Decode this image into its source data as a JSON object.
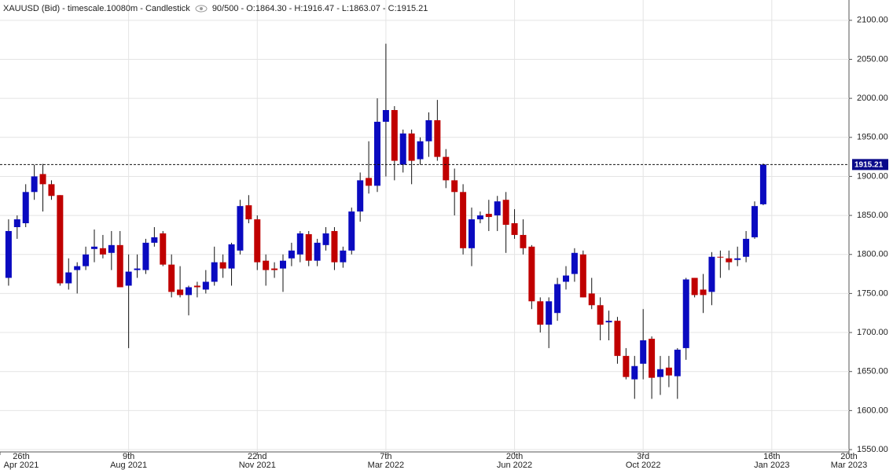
{
  "header": {
    "title": "XAUUSD (Bid) - timescale.10080m - Candlestick",
    "stats": "90/500 - O:1864.30 - H:1916.47 - L:1863.07 - C:1915.21"
  },
  "chart_data": {
    "type": "candlestick",
    "up_color": "#0a0ac0",
    "down_color": "#c00000",
    "open": [
      1770,
      1835,
      1840,
      1880,
      1903,
      1890,
      1876,
      1763,
      1780,
      1785,
      1807,
      1808,
      1802,
      1812,
      1760,
      1780,
      1780,
      1815,
      1827,
      1787,
      1755,
      1748,
      1760,
      1755,
      1765,
      1790,
      1782,
      1805,
      1863,
      1845,
      1792,
      1782,
      1782,
      1795,
      1800,
      1826,
      1792,
      1812,
      1830,
      1790,
      1805,
      1855,
      1898,
      1888,
      1970,
      1985,
      1915,
      1955,
      1922,
      1945,
      1972,
      1925,
      1895,
      1880,
      1808,
      1845,
      1852,
      1850,
      1870,
      1840,
      1825,
      1810,
      1740,
      1710,
      1725,
      1765,
      1775,
      1800,
      1750,
      1735,
      1713,
      1715,
      1670,
      1640,
      1660,
      1692,
      1643,
      1655,
      1644,
      1680,
      1770,
      1755,
      1752,
      1797,
      1795,
      1793,
      1797,
      1822,
      1864.3
    ],
    "high": [
      1845,
      1850,
      1890,
      1915,
      1916,
      1895,
      1876,
      1795,
      1790,
      1810,
      1832,
      1825,
      1830,
      1830,
      1800,
      1800,
      1820,
      1835,
      1830,
      1800,
      1785,
      1760,
      1765,
      1780,
      1810,
      1800,
      1815,
      1870,
      1876,
      1850,
      1800,
      1790,
      1800,
      1815,
      1830,
      1830,
      1820,
      1835,
      1835,
      1810,
      1860,
      1905,
      1945,
      2000,
      2070,
      1990,
      1960,
      1960,
      1950,
      1982,
      1998,
      1935,
      1910,
      1890,
      1860,
      1855,
      1870,
      1875,
      1880,
      1858,
      1845,
      1812,
      1745,
      1745,
      1770,
      1785,
      1808,
      1805,
      1770,
      1745,
      1728,
      1720,
      1680,
      1670,
      1730,
      1695,
      1670,
      1670,
      1680,
      1770,
      1770,
      1775,
      1803,
      1805,
      1805,
      1810,
      1830,
      1868,
      1916.47
    ],
    "low": [
      1760,
      1820,
      1835,
      1870,
      1855,
      1870,
      1760,
      1755,
      1750,
      1780,
      1790,
      1795,
      1780,
      1758,
      1680,
      1770,
      1775,
      1810,
      1785,
      1745,
      1745,
      1722,
      1745,
      1750,
      1760,
      1770,
      1760,
      1800,
      1840,
      1780,
      1760,
      1770,
      1752,
      1785,
      1790,
      1785,
      1785,
      1805,
      1780,
      1783,
      1800,
      1842,
      1878,
      1880,
      1900,
      1895,
      1905,
      1890,
      1915,
      1925,
      1920,
      1885,
      1850,
      1800,
      1785,
      1840,
      1830,
      1830,
      1802,
      1820,
      1800,
      1730,
      1700,
      1680,
      1715,
      1755,
      1765,
      1745,
      1730,
      1690,
      1690,
      1660,
      1640,
      1615,
      1640,
      1615,
      1620,
      1630,
      1615,
      1665,
      1745,
      1725,
      1735,
      1770,
      1780,
      1785,
      1790,
      1820,
      1863.07
    ],
    "close": [
      1830,
      1845,
      1880,
      1900,
      1890,
      1875,
      1763,
      1777,
      1785,
      1800,
      1810,
      1800,
      1812,
      1758,
      1778,
      1782,
      1815,
      1822,
      1787,
      1752,
      1748,
      1758,
      1758,
      1765,
      1790,
      1782,
      1813,
      1862,
      1845,
      1790,
      1780,
      1780,
      1792,
      1805,
      1827,
      1792,
      1815,
      1827,
      1790,
      1805,
      1855,
      1895,
      1888,
      1970,
      1985,
      1920,
      1955,
      1920,
      1945,
      1972,
      1925,
      1895,
      1880,
      1808,
      1845,
      1850,
      1848,
      1868,
      1838,
      1825,
      1808,
      1740,
      1710,
      1740,
      1762,
      1773,
      1802,
      1745,
      1735,
      1710,
      1715,
      1670,
      1643,
      1657,
      1690,
      1642,
      1653,
      1645,
      1678,
      1768,
      1748,
      1748,
      1797,
      1796,
      1790,
      1795,
      1820,
      1862,
      1915.21
    ],
    "last_price": {
      "value": 1915.21,
      "label": "1915.21"
    },
    "ylim": [
      1547,
      2126
    ],
    "yticks": [
      {
        "value": 1550,
        "label": "1550.00"
      },
      {
        "value": 1600,
        "label": "1600.00"
      },
      {
        "value": 1650,
        "label": "1650.00"
      },
      {
        "value": 1700,
        "label": "1700.00"
      },
      {
        "value": 1750,
        "label": "1750.00"
      },
      {
        "value": 1800,
        "label": "1800.00"
      },
      {
        "value": 1850,
        "label": "1850.00"
      },
      {
        "value": 1900,
        "label": "1900.00"
      },
      {
        "value": 1950,
        "label": "1950.00"
      },
      {
        "value": 2000,
        "label": "2000.00"
      },
      {
        "value": 2050,
        "label": "2050.00"
      },
      {
        "value": 2100,
        "label": "2100.00"
      }
    ],
    "xlim": [
      -1,
      98
    ],
    "xticks": [
      {
        "value": -1,
        "label": "26th\nApr 2021"
      },
      {
        "value": 14,
        "label": "9th\nAug 2021"
      },
      {
        "value": 29,
        "label": "22nd\nNov 2021"
      },
      {
        "value": 44,
        "label": "7th\nMar 2022"
      },
      {
        "value": 59,
        "label": "20th\nJun 2022"
      },
      {
        "value": 74,
        "label": "3rd\nOct 2022"
      },
      {
        "value": 89,
        "label": "16th\nJan 2023"
      },
      {
        "value": 98,
        "label": "20th\nMar 2023"
      }
    ],
    "grid": true
  }
}
